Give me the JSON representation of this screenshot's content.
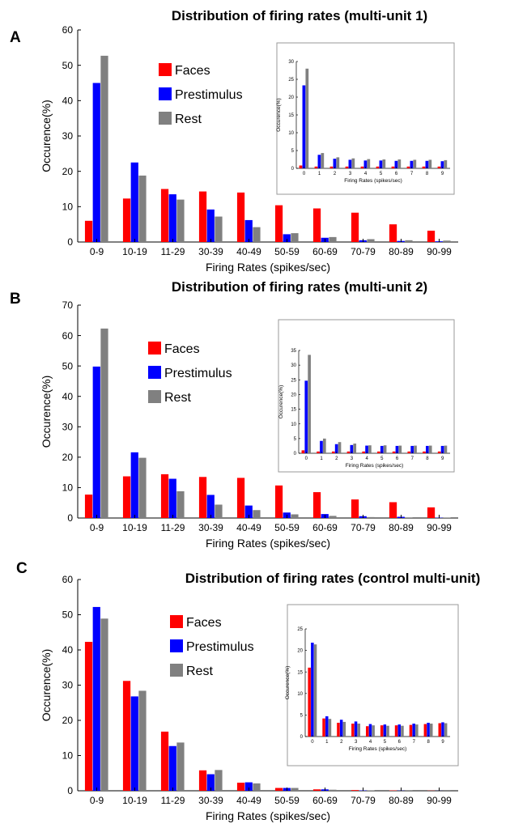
{
  "colors": {
    "faces": "#ff0000",
    "prestimulus": "#0000ff",
    "rest": "#808080"
  },
  "chart_data": [
    {
      "type": "bar",
      "panel_label": "A",
      "title": "Distribution of firing rates (multi-unit 1)",
      "xlabel": "Firing Rates (spikes/sec)",
      "ylabel": "Occurence(%)",
      "ylim": [
        0,
        60
      ],
      "yticks": [
        "0",
        "10",
        "20",
        "30",
        "40",
        "50",
        "60"
      ],
      "categories": [
        "0-9",
        "10-19",
        "11-29",
        "30-39",
        "40-49",
        "50-59",
        "60-69",
        "70-79",
        "80-89",
        "90-99"
      ],
      "legend_position": "upper-left",
      "series": [
        {
          "name": "Faces",
          "color": "#ff0000",
          "values": [
            6,
            12.3,
            15,
            14.3,
            14,
            10.4,
            9.5,
            8.3,
            5,
            3.2
          ]
        },
        {
          "name": "Prestimulus",
          "color": "#0000ff",
          "values": [
            45,
            22.5,
            13.5,
            9.2,
            6.2,
            2.2,
            1.2,
            0.5,
            0.3,
            0.2
          ]
        },
        {
          "name": "Rest",
          "color": "#808080",
          "values": [
            52.7,
            18.8,
            12,
            7.2,
            4.2,
            2.5,
            1.4,
            0.8,
            0.5,
            0.4
          ]
        }
      ],
      "inset": {
        "type": "bar",
        "xlabel": "Firing Rates (spikes/sec)",
        "ylabel": "Occurence(%)",
        "ylim": [
          0,
          30
        ],
        "yticks": [
          "0",
          "5",
          "10",
          "15",
          "20",
          "25",
          "30"
        ],
        "categories": [
          "0",
          "1",
          "2",
          "3",
          "4",
          "5",
          "6",
          "7",
          "8",
          "9"
        ],
        "series": [
          {
            "name": "Faces",
            "color": "#ff0000",
            "values": [
              0.8,
              0.5,
              0.5,
              0.5,
              0.5,
              0.5,
              0.5,
              0.5,
              0.5,
              0.5
            ]
          },
          {
            "name": "Prestimulus",
            "color": "#0000ff",
            "values": [
              23.3,
              3.8,
              2.7,
              2.4,
              2.2,
              2.2,
              2.1,
              2.1,
              2.1,
              2
            ]
          },
          {
            "name": "Rest",
            "color": "#808080",
            "values": [
              28,
              4.3,
              3.1,
              2.8,
              2.6,
              2.5,
              2.5,
              2.4,
              2.4,
              2.3
            ]
          }
        ]
      }
    },
    {
      "type": "bar",
      "panel_label": "B",
      "title": "Distribution of firing rates (multi-unit 2)",
      "xlabel": "Firing Rates (spikes/sec)",
      "ylabel": "Occurence(%)",
      "ylim": [
        0,
        70
      ],
      "yticks": [
        "0",
        "10",
        "20",
        "30",
        "40",
        "50",
        "60",
        "70"
      ],
      "categories": [
        "0-9",
        "10-19",
        "11-29",
        "30-39",
        "40-49",
        "50-59",
        "60-69",
        "70-79",
        "80-89",
        "90-99"
      ],
      "legend_position": "upper-left",
      "series": [
        {
          "name": "Faces",
          "color": "#ff0000",
          "values": [
            7.7,
            13.7,
            14.4,
            13.5,
            13.2,
            10.7,
            8.5,
            6.1,
            5.2,
            3.5
          ]
        },
        {
          "name": "Prestimulus",
          "color": "#0000ff",
          "values": [
            49.8,
            21.6,
            12.9,
            7.6,
            4.1,
            1.8,
            1.3,
            0.6,
            0.4,
            0.1
          ]
        },
        {
          "name": "Rest",
          "color": "#808080",
          "values": [
            62.3,
            19.8,
            8.8,
            4.4,
            2.6,
            1.2,
            0.7,
            0.3,
            0.2,
            0.1
          ]
        }
      ],
      "inset": {
        "type": "bar",
        "xlabel": "Firing Rates (spikes/sec)",
        "ylabel": "Occurence(%)",
        "ylim": [
          0,
          35
        ],
        "yticks": [
          "0",
          "5",
          "10",
          "15",
          "20",
          "25",
          "30",
          "35"
        ],
        "categories": [
          "0",
          "1",
          "2",
          "3",
          "4",
          "5",
          "6",
          "7",
          "8",
          "9"
        ],
        "series": [
          {
            "name": "Faces",
            "color": "#ff0000",
            "values": [
              1,
              0.6,
              0.6,
              0.6,
              0.6,
              0.6,
              0.6,
              0.6,
              0.6,
              0.6
            ]
          },
          {
            "name": "Prestimulus",
            "color": "#0000ff",
            "values": [
              24.7,
              4.2,
              3.1,
              2.8,
              2.6,
              2.5,
              2.5,
              2.5,
              2.5,
              2.5
            ]
          },
          {
            "name": "Rest",
            "color": "#808080",
            "values": [
              33.5,
              5,
              3.8,
              3.3,
              2.7,
              2.7,
              2.6,
              2.6,
              2.6,
              2.6
            ]
          }
        ]
      }
    },
    {
      "type": "bar",
      "panel_label": "C",
      "title": "Distribution of firing rates (control multi-unit)",
      "xlabel": "Firing Rates (spikes/sec)",
      "ylabel": "Occurence(%)",
      "ylim": [
        0,
        60
      ],
      "yticks": [
        "0",
        "10",
        "20",
        "30",
        "40",
        "50",
        "60"
      ],
      "categories": [
        "0-9",
        "10-19",
        "11-29",
        "30-39",
        "40-49",
        "50-59",
        "60-69",
        "70-79",
        "80-89",
        "90-99"
      ],
      "legend_position": "center",
      "series": [
        {
          "name": "Faces",
          "color": "#ff0000",
          "values": [
            42.3,
            31.2,
            16.8,
            5.8,
            2.3,
            0.8,
            0.4,
            0.2,
            0.1,
            0.05
          ]
        },
        {
          "name": "Prestimulus",
          "color": "#0000ff",
          "values": [
            52.2,
            26.8,
            12.7,
            4.7,
            2.4,
            0.8,
            0.4,
            0.1,
            0.05,
            0.02
          ]
        },
        {
          "name": "Rest",
          "color": "#808080",
          "values": [
            48.9,
            28.4,
            13.7,
            5.9,
            2.1,
            0.8,
            0.3,
            0.1,
            0.05,
            0.02
          ]
        }
      ],
      "inset": {
        "type": "bar",
        "xlabel": "Firing Rates (spikes/sec)",
        "ylabel": "Occurence(%)",
        "ylim": [
          0,
          25
        ],
        "yticks": [
          "0",
          "5",
          "10",
          "15",
          "20",
          "25"
        ],
        "categories": [
          "0",
          "1",
          "2",
          "3",
          "4",
          "5",
          "6",
          "7",
          "8",
          "9"
        ],
        "series": [
          {
            "name": "Faces",
            "color": "#ff0000",
            "values": [
              16,
              4.2,
              3.2,
              3,
              2.4,
              2.6,
              2.6,
              2.7,
              2.9,
              3.1
            ]
          },
          {
            "name": "Prestimulus",
            "color": "#0000ff",
            "values": [
              21.8,
              4.7,
              3.9,
              3.5,
              2.9,
              2.8,
              2.8,
              3,
              3.2,
              3.3
            ]
          },
          {
            "name": "Rest",
            "color": "#808080",
            "values": [
              21.4,
              4.1,
              3.4,
              3,
              2.6,
              2.5,
              2.5,
              2.8,
              3,
              3.1
            ]
          }
        ]
      }
    }
  ]
}
